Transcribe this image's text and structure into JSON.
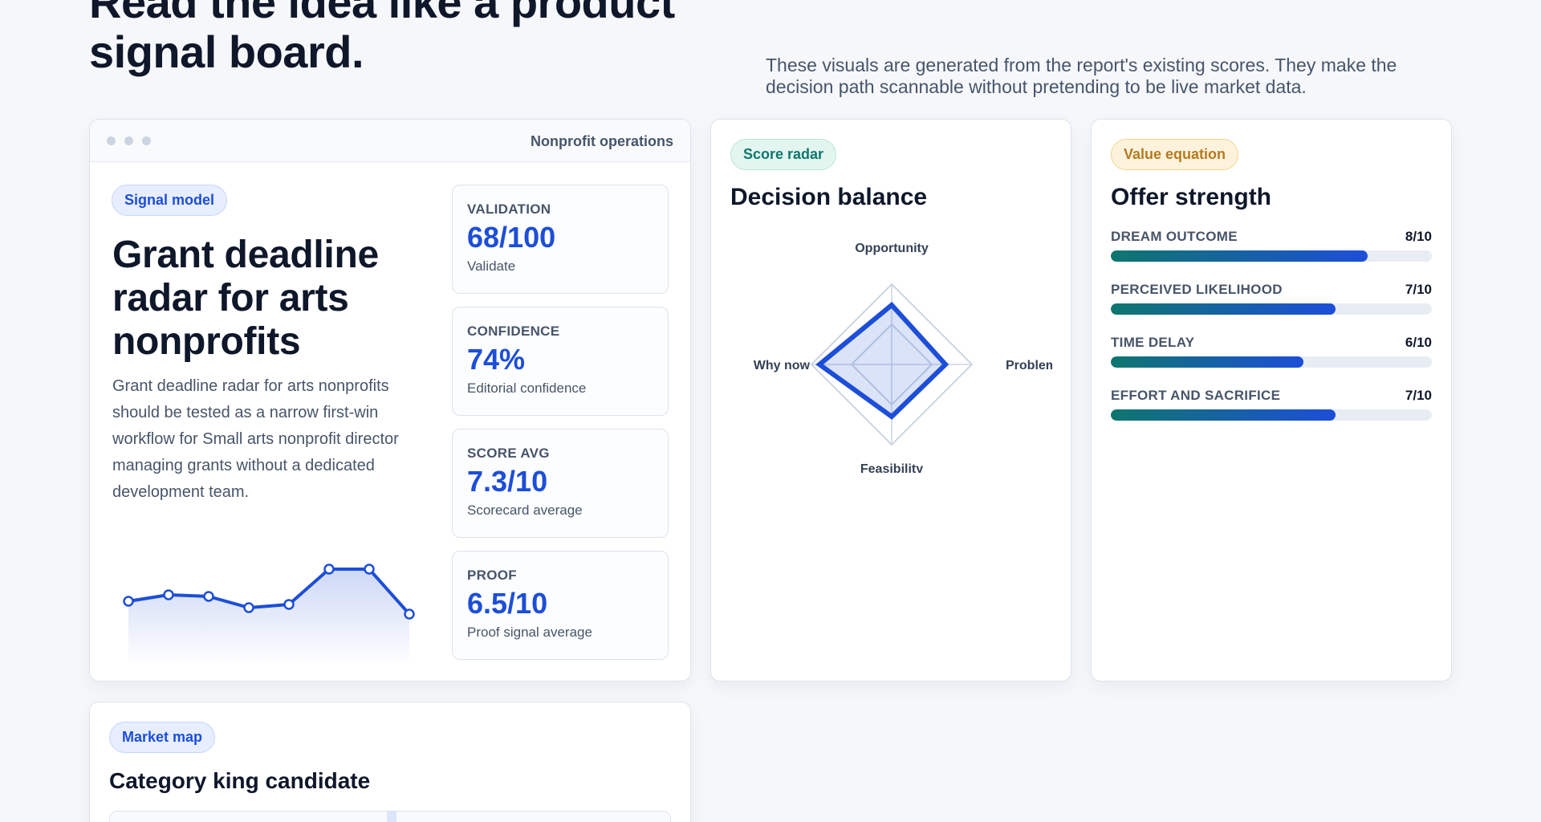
{
  "header": {
    "headline": "Read the idea like a product signal board.",
    "intro": "These visuals are generated from the report's existing scores. They make the decision path scannable without pretending to be live market data."
  },
  "main_card": {
    "window_title": "Nonprofit operations",
    "badge": "Signal model",
    "title": "Grant deadline radar for arts nonprofits",
    "description": "Grant deadline radar for arts nonprofits should be tested as a narrow first-win workflow for Small arts nonprofit director managing grants without a dedicated development team.",
    "stats": [
      {
        "label": "VALIDATION",
        "value": "68/100",
        "sub": "Validate"
      },
      {
        "label": "CONFIDENCE",
        "value": "74%",
        "sub": "Editorial confidence"
      },
      {
        "label": "SCORE AVG",
        "value": "7.3/10",
        "sub": "Scorecard average"
      },
      {
        "label": "PROOF",
        "value": "6.5/10",
        "sub": "Proof signal average"
      }
    ],
    "sparkline": [
      7.0,
      7.2,
      7.15,
      6.8,
      6.9,
      8.0,
      8.0,
      6.6
    ],
    "sparkline_range": [
      5,
      9
    ]
  },
  "radar_card": {
    "badge": "Score radar",
    "title": "Decision balance",
    "axes": [
      "Opportunity",
      "Problem",
      "Feasibility",
      "Why now"
    ],
    "values": [
      7.4,
      6.7,
      6.5,
      9.0
    ],
    "max": 10
  },
  "offer_card": {
    "badge": "Value equation",
    "title": "Offer strength",
    "bars": [
      {
        "label": "DREAM OUTCOME",
        "score_text": "8/10",
        "value": 8
      },
      {
        "label": "PERCEIVED LIKELIHOOD",
        "score_text": "7/10",
        "value": 7
      },
      {
        "label": "TIME DELAY",
        "score_text": "6/10",
        "value": 6
      },
      {
        "label": "EFFORT AND SACRIFICE",
        "score_text": "7/10",
        "value": 7
      }
    ],
    "max": 10
  },
  "map_card": {
    "badge": "Market map",
    "title": "Category king candidate"
  },
  "colors": {
    "accent": "#1d4ed8",
    "teal": "#0f766e",
    "amber": "#b7791f"
  }
}
